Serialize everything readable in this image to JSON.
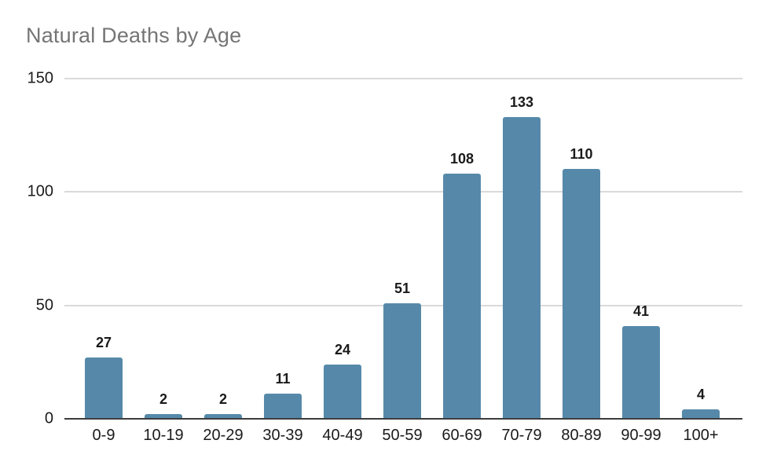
{
  "chart_data": {
    "type": "bar",
    "title": "Natural Deaths by Age",
    "categories": [
      "0-9",
      "10-19",
      "20-29",
      "30-39",
      "40-49",
      "50-59",
      "60-69",
      "70-79",
      "80-89",
      "90-99",
      "100+"
    ],
    "values": [
      27,
      2,
      2,
      11,
      24,
      51,
      108,
      133,
      110,
      41,
      4
    ],
    "xlabel": "",
    "ylabel": "",
    "ylim": [
      0,
      150
    ],
    "yticks": [
      0,
      50,
      100,
      150
    ],
    "grid": true,
    "legend_position": "none",
    "data_labels": true
  },
  "colors": {
    "bar": "#5689a9",
    "title": "#757575",
    "gridline": "#dadada",
    "axis_line": "#3c3c3c",
    "tick_label": "#1a1a1a"
  }
}
